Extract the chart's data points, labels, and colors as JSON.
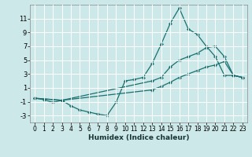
{
  "xlabel": "Humidex (Indice chaleur)",
  "ylabel": "",
  "xlim": [
    -0.5,
    23.5
  ],
  "ylim": [
    -4.0,
    13.0
  ],
  "yticks": [
    -3,
    -1,
    1,
    3,
    5,
    7,
    9,
    11
  ],
  "xticks": [
    0,
    1,
    2,
    3,
    4,
    5,
    6,
    7,
    8,
    9,
    10,
    11,
    12,
    13,
    14,
    15,
    16,
    17,
    18,
    19,
    20,
    21,
    22,
    23
  ],
  "bg_color": "#cce8e8",
  "grid_color": "#ffffff",
  "line_color": "#1a7070",
  "line1_x": [
    0,
    1,
    2,
    3,
    4,
    5,
    6,
    7,
    8,
    9,
    10,
    11,
    12,
    13,
    14,
    15,
    16,
    17,
    18,
    19,
    20,
    21,
    22,
    23
  ],
  "line1_y": [
    -0.5,
    -0.7,
    -1.1,
    -0.8,
    -1.6,
    -2.2,
    -2.5,
    -2.8,
    -3.0,
    -1.1,
    2.0,
    2.2,
    2.5,
    4.5,
    7.3,
    10.3,
    12.5,
    9.5,
    8.7,
    7.0,
    5.5,
    2.8,
    2.8,
    2.5
  ],
  "line2_x": [
    0,
    3,
    13,
    14,
    15,
    16,
    17,
    18,
    19,
    20,
    21,
    22,
    23
  ],
  "line2_y": [
    -0.5,
    -0.8,
    2.0,
    2.5,
    4.0,
    5.0,
    5.5,
    6.0,
    6.8,
    7.0,
    5.5,
    2.8,
    2.5
  ],
  "line3_x": [
    0,
    3,
    13,
    14,
    15,
    16,
    17,
    18,
    19,
    20,
    21,
    22,
    23
  ],
  "line3_y": [
    -0.5,
    -0.8,
    0.7,
    1.2,
    1.8,
    2.5,
    3.0,
    3.5,
    4.0,
    4.3,
    4.8,
    2.8,
    2.5
  ],
  "xlabel_fontsize": 6.5,
  "tick_fontsize": 5.5
}
